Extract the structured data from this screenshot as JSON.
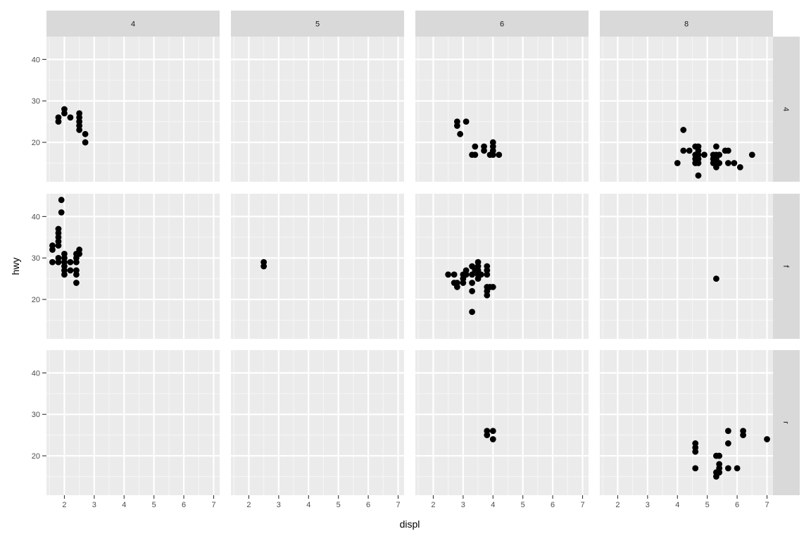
{
  "colors": {
    "panel_background": "#EBEBEB",
    "strip_background": "#D9D9D9",
    "grid_major": "#FFFFFF",
    "grid_minor": "#F5F5F5",
    "point": "#000000",
    "tick": "#333333"
  },
  "chart_data": {
    "type": "scatter",
    "facet": "grid",
    "xlabel": "displ",
    "ylabel": "hwy",
    "col_strips": [
      "4",
      "5",
      "6",
      "8"
    ],
    "row_strips": [
      "4",
      "f",
      "r"
    ],
    "xlim": [
      1.4,
      7.2
    ],
    "ylim": [
      10.5,
      45.5
    ],
    "x_ticks": [
      2,
      3,
      4,
      5,
      6,
      7
    ],
    "y_ticks": [
      20,
      30,
      40
    ],
    "grid": true,
    "panels": [
      {
        "row": "4",
        "col": "4",
        "points": [
          [
            1.8,
            26
          ],
          [
            1.8,
            25
          ],
          [
            2.0,
            28
          ],
          [
            2.0,
            27
          ],
          [
            2.2,
            26
          ],
          [
            2.5,
            27
          ],
          [
            2.5,
            26
          ],
          [
            2.5,
            25
          ],
          [
            2.5,
            24
          ],
          [
            2.5,
            23
          ],
          [
            2.7,
            22
          ],
          [
            2.7,
            20
          ]
        ]
      },
      {
        "row": "4",
        "col": "5",
        "points": []
      },
      {
        "row": "4",
        "col": "6",
        "points": [
          [
            2.8,
            25
          ],
          [
            2.8,
            24
          ],
          [
            2.9,
            22
          ],
          [
            3.1,
            25
          ],
          [
            3.3,
            17
          ],
          [
            3.4,
            17
          ],
          [
            3.4,
            19
          ],
          [
            3.7,
            19
          ],
          [
            3.7,
            18
          ],
          [
            3.9,
            17
          ],
          [
            4.0,
            20
          ],
          [
            4.0,
            19
          ],
          [
            4.0,
            18
          ],
          [
            4.0,
            17
          ],
          [
            4.2,
            17
          ]
        ]
      },
      {
        "row": "4",
        "col": "8",
        "points": [
          [
            4.0,
            15
          ],
          [
            4.2,
            23
          ],
          [
            4.2,
            18
          ],
          [
            4.4,
            18
          ],
          [
            4.6,
            19
          ],
          [
            4.6,
            17
          ],
          [
            4.6,
            16
          ],
          [
            4.6,
            15
          ],
          [
            4.7,
            19
          ],
          [
            4.7,
            18
          ],
          [
            4.7,
            17
          ],
          [
            4.7,
            16
          ],
          [
            4.7,
            15
          ],
          [
            4.7,
            12
          ],
          [
            4.9,
            17
          ],
          [
            5.2,
            17
          ],
          [
            5.2,
            16
          ],
          [
            5.2,
            15
          ],
          [
            5.3,
            19
          ],
          [
            5.3,
            17
          ],
          [
            5.3,
            16
          ],
          [
            5.3,
            15
          ],
          [
            5.3,
            14
          ],
          [
            5.4,
            17
          ],
          [
            5.4,
            15
          ],
          [
            5.6,
            18
          ],
          [
            5.7,
            18
          ],
          [
            5.7,
            15
          ],
          [
            5.9,
            15
          ],
          [
            6.1,
            14
          ],
          [
            6.5,
            17
          ]
        ]
      },
      {
        "row": "f",
        "col": "4",
        "points": [
          [
            1.6,
            33
          ],
          [
            1.6,
            32
          ],
          [
            1.6,
            29
          ],
          [
            1.8,
            37
          ],
          [
            1.8,
            36
          ],
          [
            1.8,
            35
          ],
          [
            1.8,
            34
          ],
          [
            1.8,
            33
          ],
          [
            1.8,
            30
          ],
          [
            1.8,
            29
          ],
          [
            1.9,
            44
          ],
          [
            1.9,
            41
          ],
          [
            2.0,
            31
          ],
          [
            2.0,
            30
          ],
          [
            2.0,
            29
          ],
          [
            2.0,
            28
          ],
          [
            2.0,
            27
          ],
          [
            2.0,
            26
          ],
          [
            2.2,
            29
          ],
          [
            2.2,
            27
          ],
          [
            2.4,
            31
          ],
          [
            2.4,
            30
          ],
          [
            2.4,
            29
          ],
          [
            2.4,
            27
          ],
          [
            2.4,
            26
          ],
          [
            2.4,
            24
          ],
          [
            2.5,
            32
          ],
          [
            2.5,
            31
          ]
        ]
      },
      {
        "row": "f",
        "col": "5",
        "points": [
          [
            2.5,
            29
          ],
          [
            2.5,
            28
          ]
        ]
      },
      {
        "row": "f",
        "col": "6",
        "points": [
          [
            2.5,
            26
          ],
          [
            2.7,
            26
          ],
          [
            2.7,
            24
          ],
          [
            2.8,
            24
          ],
          [
            2.8,
            23
          ],
          [
            3.0,
            26
          ],
          [
            3.0,
            25
          ],
          [
            3.0,
            24
          ],
          [
            3.1,
            27
          ],
          [
            3.1,
            26
          ],
          [
            3.3,
            28
          ],
          [
            3.3,
            26
          ],
          [
            3.3,
            24
          ],
          [
            3.3,
            22
          ],
          [
            3.3,
            17
          ],
          [
            3.4,
            27
          ],
          [
            3.5,
            29
          ],
          [
            3.5,
            28
          ],
          [
            3.5,
            27
          ],
          [
            3.5,
            26
          ],
          [
            3.5,
            25
          ],
          [
            3.6,
            26
          ],
          [
            3.8,
            28
          ],
          [
            3.8,
            27
          ],
          [
            3.8,
            26
          ],
          [
            3.8,
            23
          ],
          [
            3.8,
            22
          ],
          [
            3.8,
            21
          ],
          [
            3.9,
            23
          ],
          [
            4.0,
            23
          ]
        ]
      },
      {
        "row": "f",
        "col": "8",
        "points": [
          [
            5.3,
            25
          ]
        ]
      },
      {
        "row": "r",
        "col": "4",
        "points": []
      },
      {
        "row": "r",
        "col": "5",
        "points": []
      },
      {
        "row": "r",
        "col": "6",
        "points": [
          [
            3.8,
            26
          ],
          [
            3.8,
            25
          ],
          [
            4.0,
            26
          ],
          [
            4.0,
            24
          ]
        ]
      },
      {
        "row": "r",
        "col": "8",
        "points": [
          [
            4.6,
            23
          ],
          [
            4.6,
            22
          ],
          [
            4.6,
            21
          ],
          [
            4.6,
            17
          ],
          [
            5.3,
            20
          ],
          [
            5.3,
            16
          ],
          [
            5.3,
            15
          ],
          [
            5.4,
            20
          ],
          [
            5.4,
            18
          ],
          [
            5.4,
            17
          ],
          [
            5.4,
            16
          ],
          [
            5.7,
            26
          ],
          [
            5.7,
            23
          ],
          [
            5.7,
            17
          ],
          [
            6.0,
            17
          ],
          [
            6.2,
            26
          ],
          [
            6.2,
            25
          ],
          [
            7.0,
            24
          ]
        ]
      }
    ]
  }
}
